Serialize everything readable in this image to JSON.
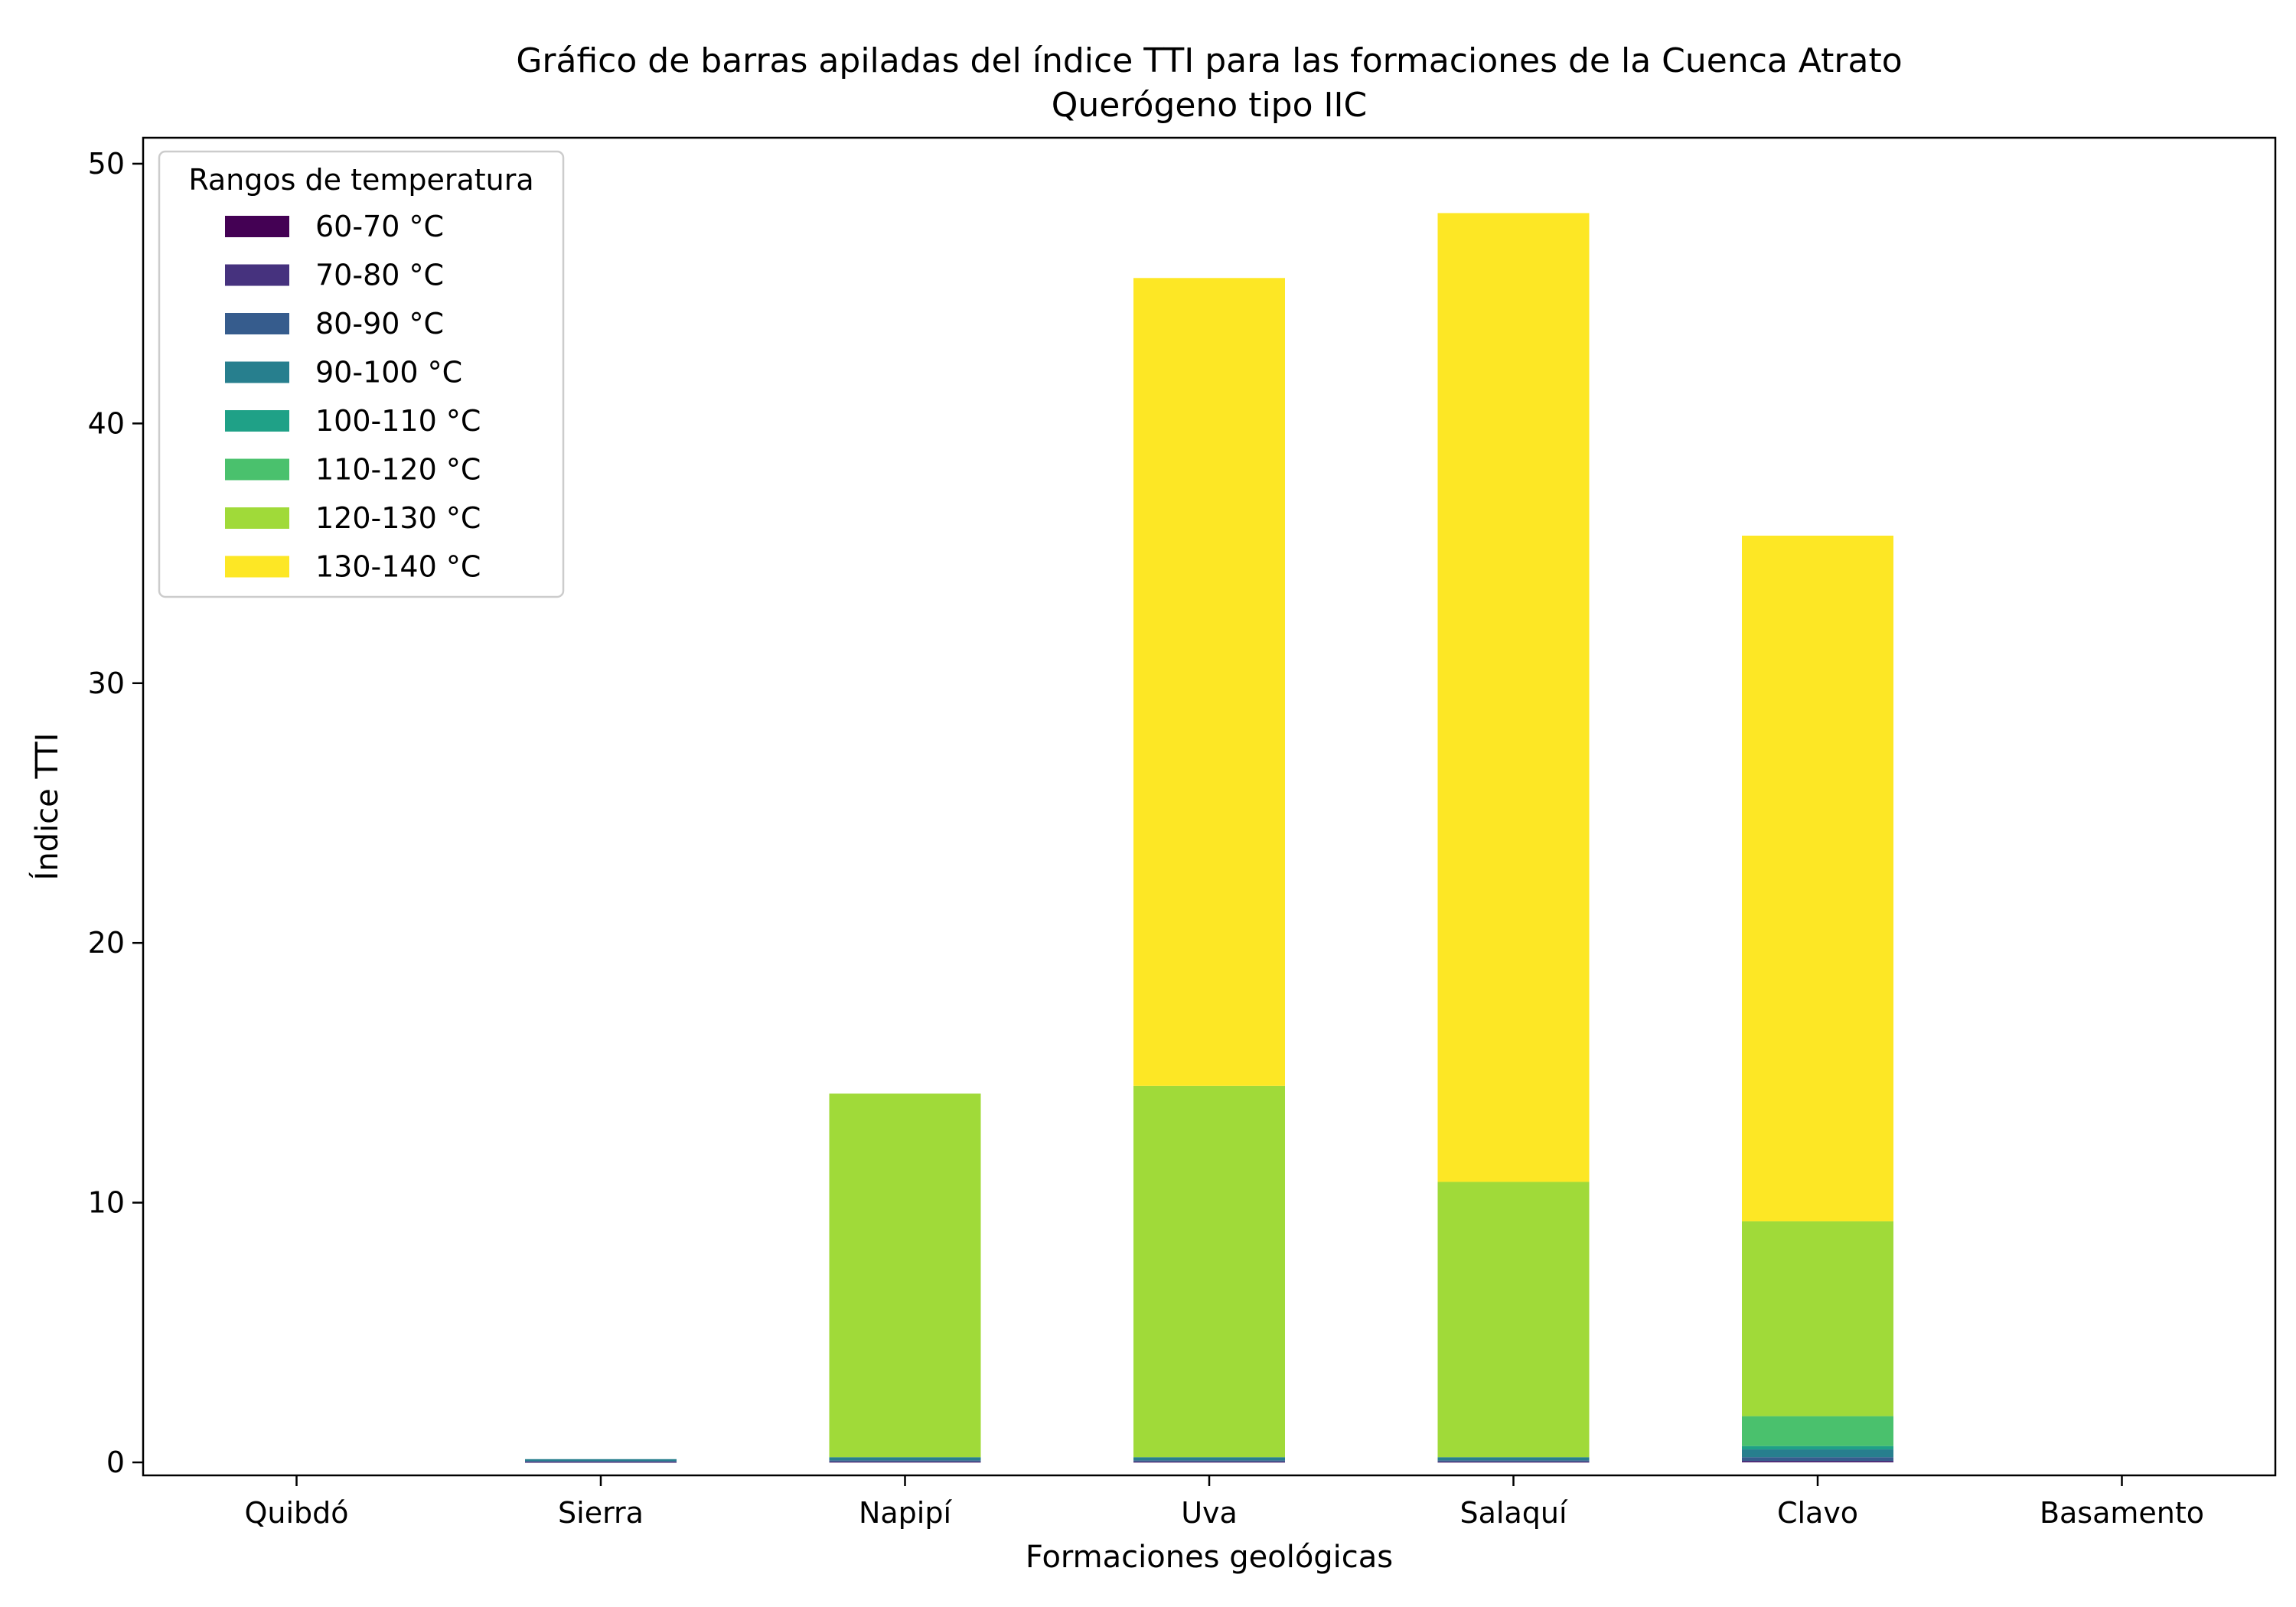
{
  "chart_data": {
    "type": "bar",
    "stacked": true,
    "title": "Gráfico de barras apiladas del índice TTI para las formaciones de la Cuenca Atrato",
    "subtitle": "Querógeno tipo IIC",
    "xlabel": "Formaciones geológicas",
    "ylabel": "Índice TTI",
    "ylim": [
      -0.5,
      51
    ],
    "yticks": [
      0,
      10,
      20,
      30,
      40,
      50
    ],
    "grid": false,
    "legend": {
      "title": "Rangos de temperatura",
      "placement": "top-left"
    },
    "categories": [
      "Quibdó",
      "Sierra",
      "Napipí",
      "Uva",
      "Salaquí",
      "Clavo",
      "Basamento"
    ],
    "series": [
      {
        "name": "60-70 °C",
        "color": "#440154",
        "values": [
          0,
          0.005,
          0.01,
          0.01,
          0.01,
          0.02,
          0
        ]
      },
      {
        "name": "70-80 °C",
        "color": "#46327e",
        "values": [
          0,
          0.01,
          0.02,
          0.02,
          0.02,
          0.04,
          0
        ]
      },
      {
        "name": "80-90 °C",
        "color": "#365c8d",
        "values": [
          0,
          0.04,
          0.05,
          0.05,
          0.05,
          0.14,
          0
        ]
      },
      {
        "name": "90-100 °C",
        "color": "#277f8e",
        "values": [
          0,
          0.07,
          0.12,
          0.12,
          0.12,
          0.3,
          0
        ]
      },
      {
        "name": "100-110 °C",
        "color": "#1fa187",
        "values": [
          0,
          0,
          0,
          0,
          0,
          0.13,
          0
        ]
      },
      {
        "name": "110-120 °C",
        "color": "#4ac16d",
        "values": [
          0,
          0,
          0,
          0,
          0,
          1.15,
          0
        ]
      },
      {
        "name": "120-130 °C",
        "color": "#a0da39",
        "values": [
          0,
          0,
          14.0,
          14.3,
          10.6,
          7.5,
          0
        ]
      },
      {
        "name": "130-140 °C",
        "color": "#fde725",
        "values": [
          0,
          0,
          0,
          31.1,
          37.3,
          26.4,
          0
        ]
      }
    ]
  }
}
